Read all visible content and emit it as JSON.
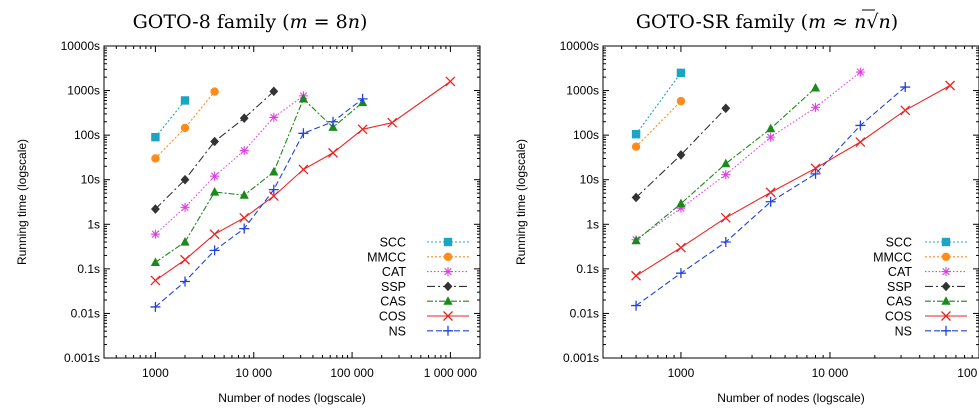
{
  "chart_data": [
    {
      "type": "line",
      "title_parts": [
        "GOTO-8 family (",
        "m",
        " = 8",
        "n",
        ")"
      ],
      "xlabel": "Number of nodes (logscale)",
      "ylabel": "Running time (logscale)",
      "xscale": "log",
      "yscale": "log",
      "xlim": [
        300,
        2000000
      ],
      "ylim": [
        0.001,
        10000
      ],
      "xticks": [
        1000,
        10000,
        100000,
        1000000
      ],
      "xtick_labels": [
        "1000",
        "10 000",
        "100 000",
        "1 000 000"
      ],
      "yticks": [
        0.001,
        0.01,
        0.1,
        1,
        10,
        100,
        1000,
        10000
      ],
      "ytick_labels": [
        "0.001s",
        "0.01s",
        "0.1s",
        "1s",
        "10s",
        "100s",
        "1000s",
        "10000s"
      ],
      "legend_position": "bottom-right",
      "grid": false,
      "series": [
        {
          "name": "SCC",
          "color": "#1ba4c4",
          "dash": "2,2",
          "marker": "square",
          "x": [
            1000,
            2000
          ],
          "y": [
            90,
            600
          ]
        },
        {
          "name": "MMCC",
          "color": "#ff8c1a",
          "dash": "2,2",
          "marker": "circle",
          "x": [
            1000,
            2000,
            4000
          ],
          "y": [
            30,
            145,
            950
          ]
        },
        {
          "name": "CAT",
          "color": "#e040e0",
          "dash": "1.5,2",
          "marker": "star",
          "x": [
            1000,
            2000,
            4000,
            8000,
            16000,
            32000
          ],
          "y": [
            0.6,
            2.4,
            12,
            45,
            250,
            760
          ]
        },
        {
          "name": "SSP",
          "color": "#333333",
          "dash": "8,3,2,3",
          "marker": "diamond",
          "x": [
            1000,
            2000,
            4000,
            8000,
            16000
          ],
          "y": [
            2.2,
            10,
            72,
            240,
            960
          ]
        },
        {
          "name": "CAS",
          "color": "#1a8a1a",
          "dash": "6,2,2,2",
          "marker": "triangle",
          "x": [
            1000,
            2000,
            4000,
            8000,
            16000,
            32000,
            64000,
            128000
          ],
          "y": [
            0.14,
            0.4,
            5.3,
            4.5,
            15,
            650,
            150,
            540
          ]
        },
        {
          "name": "COS",
          "color": "#ee2222",
          "dash": "",
          "marker": "x",
          "x": [
            1000,
            2000,
            4000,
            8000,
            16000,
            32000,
            64000,
            128000,
            256000,
            1000000
          ],
          "y": [
            0.055,
            0.16,
            0.6,
            1.4,
            4.3,
            17,
            40,
            135,
            190,
            1600
          ]
        },
        {
          "name": "NS",
          "color": "#2244dd",
          "dash": "6,3",
          "marker": "plus",
          "x": [
            1000,
            2000,
            4000,
            8000,
            16000,
            32000,
            64000,
            128000
          ],
          "y": [
            0.014,
            0.052,
            0.26,
            0.8,
            6,
            110,
            200,
            650
          ]
        }
      ]
    },
    {
      "type": "line",
      "title_parts": [
        "GOTO-SR family (",
        "m",
        " ≈ ",
        "n",
        "√",
        "n",
        ")"
      ],
      "xlabel": "Number of nodes (logscale)",
      "ylabel": "Running time (logscale)",
      "xscale": "log",
      "yscale": "log",
      "xlim": [
        300,
        100000
      ],
      "ylim": [
        0.001,
        10000
      ],
      "xticks": [
        1000,
        10000,
        100000
      ],
      "xtick_labels": [
        "1000",
        "10 000",
        "100 000"
      ],
      "yticks": [
        0.001,
        0.01,
        0.1,
        1,
        10,
        100,
        1000,
        10000
      ],
      "ytick_labels": [
        "0.001s",
        "0.01s",
        "0.1s",
        "1s",
        "10s",
        "100s",
        "1000s",
        "10000s"
      ],
      "legend_position": "bottom-right",
      "grid": false,
      "series": [
        {
          "name": "SCC",
          "color": "#1ba4c4",
          "dash": "2,2",
          "marker": "square",
          "x": [
            500,
            1000
          ],
          "y": [
            105,
            2500
          ]
        },
        {
          "name": "MMCC",
          "color": "#ff8c1a",
          "dash": "2,2",
          "marker": "circle",
          "x": [
            500,
            1000
          ],
          "y": [
            55,
            580
          ]
        },
        {
          "name": "CAT",
          "color": "#e040e0",
          "dash": "1.5,2",
          "marker": "star",
          "x": [
            500,
            1000,
            2000,
            4000,
            8000,
            16000
          ],
          "y": [
            0.45,
            2.3,
            13,
            90,
            420,
            2600
          ]
        },
        {
          "name": "SSP",
          "color": "#333333",
          "dash": "8,3,2,3",
          "marker": "diamond",
          "x": [
            500,
            1000,
            2000
          ],
          "y": [
            4,
            36,
            400
          ]
        },
        {
          "name": "CAS",
          "color": "#1a8a1a",
          "dash": "6,2,2,2",
          "marker": "triangle",
          "x": [
            500,
            1000,
            2000,
            4000,
            8000
          ],
          "y": [
            0.43,
            2.9,
            23,
            140,
            1150
          ]
        },
        {
          "name": "COS",
          "color": "#ee2222",
          "dash": "",
          "marker": "x",
          "x": [
            500,
            1000,
            2000,
            4000,
            8000,
            16000,
            32000,
            64000
          ],
          "y": [
            0.07,
            0.3,
            1.4,
            5.2,
            18,
            70,
            360,
            1300
          ]
        },
        {
          "name": "NS",
          "color": "#2244dd",
          "dash": "6,3",
          "marker": "plus",
          "x": [
            500,
            1000,
            2000,
            4000,
            8000,
            16000,
            32000
          ],
          "y": [
            0.015,
            0.08,
            0.4,
            3.2,
            13.5,
            165,
            1200
          ]
        }
      ]
    }
  ]
}
